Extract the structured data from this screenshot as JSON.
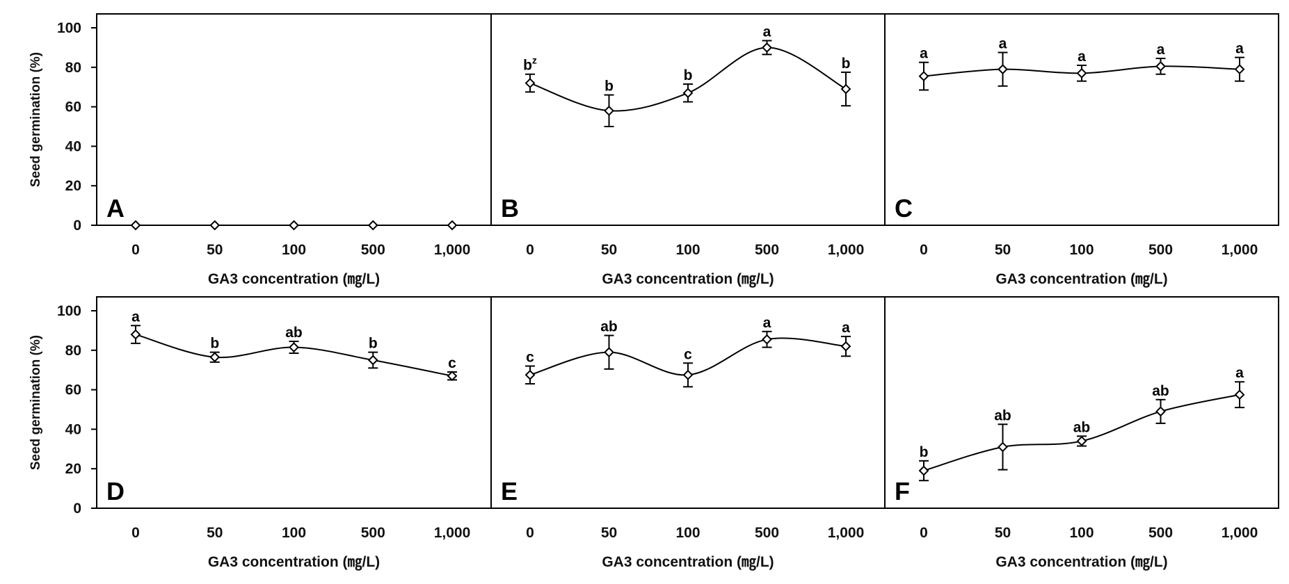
{
  "chart_data": [
    {
      "panel": "A",
      "type": "line",
      "categories": [
        "0",
        "50",
        "100",
        "500",
        "1,000"
      ],
      "xlabel": "GA3 concentration (㎎/L)",
      "ylabel": "Seed germination (%)",
      "ylim": [
        0,
        100
      ],
      "yticks": [
        "0",
        "20",
        "40",
        "60",
        "80",
        "100"
      ],
      "values": [
        0,
        0,
        0,
        0,
        0
      ],
      "errors": [
        0,
        0,
        0,
        0,
        0
      ],
      "labels": [
        "",
        "",
        "",
        "",
        ""
      ]
    },
    {
      "panel": "B",
      "type": "line",
      "categories": [
        "0",
        "50",
        "100",
        "500",
        "1,000"
      ],
      "xlabel": "GA3 concentration (㎎/L)",
      "ylabel": "",
      "ylim": [
        0,
        100
      ],
      "values": [
        72,
        58,
        67,
        90,
        69
      ],
      "errors": [
        4.5,
        8,
        4.5,
        3.5,
        8.5
      ],
      "labels": [
        "b",
        "b",
        "b",
        "a",
        "b"
      ],
      "label_superscript": {
        "index": 0,
        "text": "z"
      }
    },
    {
      "panel": "C",
      "type": "line",
      "categories": [
        "0",
        "50",
        "100",
        "500",
        "1,000"
      ],
      "xlabel": "GA3 concentration (㎎/L)",
      "ylabel": "",
      "ylim": [
        0,
        100
      ],
      "values": [
        75.5,
        79,
        77,
        80.5,
        79
      ],
      "errors": [
        7,
        8.5,
        4,
        4,
        6
      ],
      "labels": [
        "a",
        "a",
        "a",
        "a",
        "a"
      ]
    },
    {
      "panel": "D",
      "type": "line",
      "categories": [
        "0",
        "50",
        "100",
        "500",
        "1,000"
      ],
      "xlabel": "GA3 concentration (㎎/L)",
      "ylabel": "Seed germination (%)",
      "ylim": [
        0,
        100
      ],
      "yticks": [
        "0",
        "20",
        "40",
        "60",
        "80",
        "100"
      ],
      "values": [
        88,
        76.5,
        81.5,
        75,
        67
      ],
      "errors": [
        4.5,
        2.5,
        3,
        4,
        2
      ],
      "labels": [
        "a",
        "b",
        "ab",
        "b",
        "c"
      ]
    },
    {
      "panel": "E",
      "type": "line",
      "categories": [
        "0",
        "50",
        "100",
        "500",
        "1,000"
      ],
      "xlabel": "GA3 concentration (㎎/L)",
      "ylabel": "",
      "ylim": [
        0,
        100
      ],
      "values": [
        67.5,
        79,
        67.5,
        85.5,
        82
      ],
      "errors": [
        4.5,
        8.5,
        6,
        4,
        5
      ],
      "labels": [
        "c",
        "ab",
        "c",
        "a",
        "a"
      ]
    },
    {
      "panel": "F",
      "type": "line",
      "categories": [
        "0",
        "50",
        "100",
        "500",
        "1,000"
      ],
      "xlabel": "GA3 concentration (㎎/L)",
      "ylabel": "",
      "ylim": [
        0,
        100
      ],
      "values": [
        19,
        31,
        34,
        49,
        57.5
      ],
      "errors": [
        5,
        11.5,
        2.5,
        6,
        6.5
      ],
      "labels": [
        "b",
        "ab",
        "ab",
        "ab",
        "a"
      ]
    }
  ]
}
